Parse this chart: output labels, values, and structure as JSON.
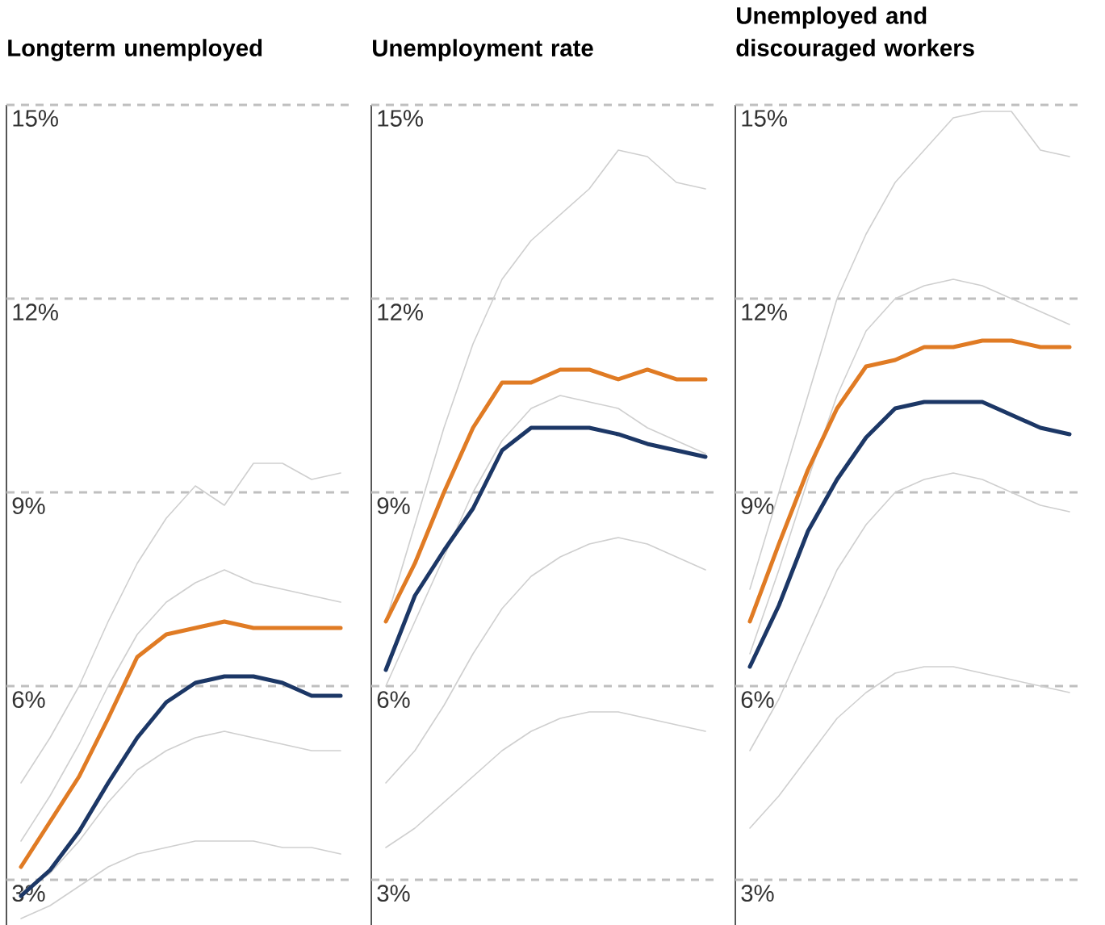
{
  "chart_data": [
    {
      "type": "line",
      "title": "Longterm unemployed",
      "categories": [
        null,
        null,
        null,
        null,
        null,
        null,
        null,
        null,
        null,
        null,
        null,
        null
      ],
      "ylim": [
        2.3,
        15
      ],
      "yticks": [
        {
          "value": 3,
          "label": "3%"
        },
        {
          "value": 6,
          "label": "6%"
        },
        {
          "value": 9,
          "label": "9%"
        },
        {
          "value": 12,
          "label": "12%"
        },
        {
          "value": 15,
          "label": "15%"
        }
      ],
      "grid": "y",
      "tick_labels": "y",
      "series": [
        {
          "color": "#cfcfcf",
          "values": [
            4.5,
            5.2,
            6.0,
            7.0,
            7.9,
            8.6,
            9.1,
            8.8,
            9.45,
            9.45,
            9.2,
            9.3
          ]
        },
        {
          "color": "#cfcfcf",
          "values": [
            3.6,
            4.3,
            5.1,
            6.0,
            6.8,
            7.3,
            7.6,
            7.8,
            7.6,
            7.5,
            7.4,
            7.3
          ]
        },
        {
          "color": "#cfcfcf",
          "values": [
            2.8,
            3.1,
            3.6,
            4.2,
            4.7,
            5.0,
            5.2,
            5.3,
            5.2,
            5.1,
            5.0,
            5.0
          ]
        },
        {
          "color": "#cfcfcf",
          "values": [
            2.4,
            2.6,
            2.9,
            3.2,
            3.4,
            3.5,
            3.6,
            3.6,
            3.6,
            3.5,
            3.5,
            3.4
          ]
        },
        {
          "color": "#e07b24",
          "values": [
            3.2,
            3.9,
            4.6,
            5.5,
            6.45,
            6.8,
            6.9,
            7.0,
            6.9,
            6.9,
            6.9,
            6.9
          ]
        },
        {
          "color": "#1c3766",
          "values": [
            2.75,
            3.15,
            3.75,
            4.5,
            5.2,
            5.75,
            6.05,
            6.15,
            6.15,
            6.05,
            5.85,
            5.85
          ]
        }
      ]
    },
    {
      "type": "line",
      "title": "Unemployment rate",
      "categories": [
        null,
        null,
        null,
        null,
        null,
        null,
        null,
        null,
        null,
        null,
        null,
        null
      ],
      "ylim": [
        2.3,
        15
      ],
      "yticks": [
        {
          "value": 3,
          "label": "3%"
        },
        {
          "value": 6,
          "label": "6%"
        },
        {
          "value": 9,
          "label": "9%"
        },
        {
          "value": 12,
          "label": "12%"
        },
        {
          "value": 15,
          "label": "15%"
        }
      ],
      "grid": "y",
      "tick_labels": "y",
      "series": [
        {
          "color": "#cfcfcf",
          "values": [
            7.0,
            8.5,
            10.0,
            11.3,
            12.3,
            12.9,
            13.3,
            13.7,
            14.3,
            14.2,
            13.8,
            13.7
          ]
        },
        {
          "color": "#cfcfcf",
          "values": [
            6.0,
            7.0,
            8.0,
            9.0,
            9.8,
            10.3,
            10.5,
            10.4,
            10.3,
            10.0,
            9.8,
            9.6
          ]
        },
        {
          "color": "#cfcfcf",
          "values": [
            4.5,
            5.0,
            5.7,
            6.5,
            7.2,
            7.7,
            8.0,
            8.2,
            8.3,
            8.2,
            8.0,
            7.8
          ]
        },
        {
          "color": "#cfcfcf",
          "values": [
            3.5,
            3.8,
            4.2,
            4.6,
            5.0,
            5.3,
            5.5,
            5.6,
            5.6,
            5.5,
            5.4,
            5.3
          ]
        },
        {
          "color": "#e07b24",
          "values": [
            7.0,
            7.9,
            9.0,
            10.0,
            10.7,
            10.7,
            10.9,
            10.9,
            10.75,
            10.9,
            10.75,
            10.75
          ]
        },
        {
          "color": "#1c3766",
          "values": [
            6.25,
            7.4,
            8.1,
            8.75,
            9.65,
            10.0,
            10.0,
            10.0,
            9.9,
            9.75,
            9.65,
            9.55
          ]
        }
      ]
    },
    {
      "type": "line",
      "title": "Unemployed and discouraged workers",
      "categories": [
        null,
        null,
        null,
        null,
        null,
        null,
        null,
        null,
        null,
        null,
        null,
        null
      ],
      "ylim": [
        2.3,
        15
      ],
      "yticks": [
        {
          "value": 3,
          "label": "3%"
        },
        {
          "value": 6,
          "label": "6%"
        },
        {
          "value": 9,
          "label": "9%"
        },
        {
          "value": 12,
          "label": "12%"
        },
        {
          "value": 15,
          "label": "15%"
        }
      ],
      "grid": "y",
      "tick_labels": "y",
      "series": [
        {
          "color": "#cfcfcf",
          "values": [
            7.5,
            9.0,
            10.5,
            12.0,
            13.0,
            13.8,
            14.3,
            14.8,
            14.9,
            14.9,
            14.3,
            14.2
          ]
        },
        {
          "color": "#cfcfcf",
          "values": [
            6.5,
            7.8,
            9.2,
            10.5,
            11.5,
            12.0,
            12.2,
            12.3,
            12.2,
            12.0,
            11.8,
            11.6
          ]
        },
        {
          "color": "#cfcfcf",
          "values": [
            5.0,
            5.8,
            6.8,
            7.8,
            8.5,
            9.0,
            9.2,
            9.3,
            9.2,
            9.0,
            8.8,
            8.7
          ]
        },
        {
          "color": "#cfcfcf",
          "values": [
            3.8,
            4.3,
            4.9,
            5.5,
            5.9,
            6.2,
            6.3,
            6.3,
            6.2,
            6.1,
            6.0,
            5.9
          ]
        },
        {
          "color": "#e07b24",
          "values": [
            7.0,
            8.2,
            9.35,
            10.3,
            10.95,
            11.05,
            11.25,
            11.25,
            11.35,
            11.35,
            11.25,
            11.25
          ]
        },
        {
          "color": "#1c3766",
          "values": [
            6.3,
            7.25,
            8.4,
            9.2,
            9.85,
            10.3,
            10.4,
            10.4,
            10.4,
            10.2,
            10.0,
            9.9
          ]
        }
      ]
    }
  ]
}
